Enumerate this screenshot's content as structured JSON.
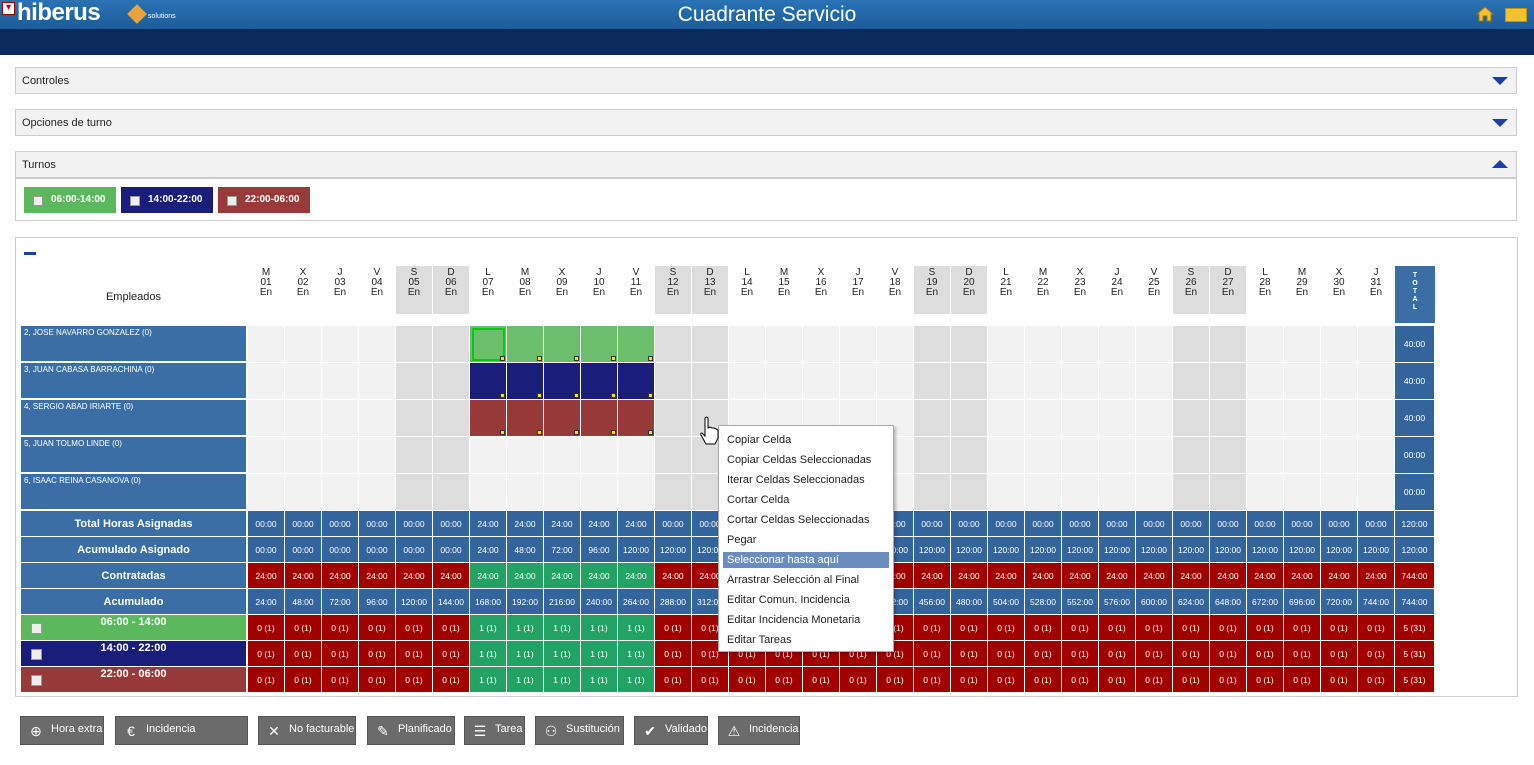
{
  "header": {
    "brand": "hiberus",
    "brand_sub": "solutions",
    "title": "Cuadrante Servicio",
    "close_icon": "close-icon",
    "home_icon": "home-icon",
    "mail_icon": "mail-icon"
  },
  "panels": [
    {
      "label": "Controles",
      "state": "collapsed"
    },
    {
      "label": "Opciones de turno",
      "state": "collapsed"
    },
    {
      "label": "Turnos",
      "state": "expanded"
    }
  ],
  "turnos": [
    {
      "label": "06:00-14:00",
      "color": "#5cb85c"
    },
    {
      "label": "14:00-22:00",
      "color": "#1b1d7a"
    },
    {
      "label": "22:00-06:00",
      "color": "#983a3a"
    }
  ],
  "grid": {
    "employees_label": "Empleados",
    "total_label": "TOTAL",
    "days": [
      [
        "M",
        "01",
        "En"
      ],
      [
        "X",
        "02",
        "En"
      ],
      [
        "J",
        "03",
        "En"
      ],
      [
        "V",
        "04",
        "En"
      ],
      [
        "S",
        "05",
        "En"
      ],
      [
        "D",
        "06",
        "En"
      ],
      [
        "L",
        "07",
        "En"
      ],
      [
        "M",
        "08",
        "En"
      ],
      [
        "X",
        "09",
        "En"
      ],
      [
        "J",
        "10",
        "En"
      ],
      [
        "V",
        "11",
        "En"
      ],
      [
        "S",
        "12",
        "En"
      ],
      [
        "D",
        "13",
        "En"
      ],
      [
        "L",
        "14",
        "En"
      ],
      [
        "M",
        "15",
        "En"
      ],
      [
        "X",
        "16",
        "En"
      ],
      [
        "J",
        "17",
        "En"
      ],
      [
        "V",
        "18",
        "En"
      ],
      [
        "S",
        "19",
        "En"
      ],
      [
        "D",
        "20",
        "En"
      ],
      [
        "L",
        "21",
        "En"
      ],
      [
        "M",
        "22",
        "En"
      ],
      [
        "X",
        "23",
        "En"
      ],
      [
        "J",
        "24",
        "En"
      ],
      [
        "V",
        "25",
        "En"
      ],
      [
        "S",
        "26",
        "En"
      ],
      [
        "D",
        "27",
        "En"
      ],
      [
        "L",
        "28",
        "En"
      ],
      [
        "M",
        "29",
        "En"
      ],
      [
        "X",
        "30",
        "En"
      ],
      [
        "J",
        "31",
        "En"
      ]
    ],
    "employees": [
      {
        "name": "2, JOSE NAVARRO GONZALEZ (0)",
        "total": "40:00",
        "shift": 1
      },
      {
        "name": "3, JUAN CABASA BARRACHINA (0)",
        "total": "40:00",
        "shift": 2
      },
      {
        "name": "4, SERGIO ABAD IRIARTE (0)",
        "total": "40:00",
        "shift": 3
      },
      {
        "name": "5, JUAN TOLMO LINDE (0)",
        "total": "00:00",
        "shift": 0
      },
      {
        "name": "6, ISAAC REINA CASANOVA (0)",
        "total": "00:00",
        "shift": 0
      }
    ],
    "summary": [
      {
        "label": "Total Horas Asignadas",
        "values": [
          "00:00",
          "00:00",
          "00:00",
          "00:00",
          "00:00",
          "00:00",
          "24:00",
          "24:00",
          "24:00",
          "24:00",
          "24:00",
          "00:00",
          "00:00",
          "00:00",
          "00:00",
          "00:00",
          "00:00",
          "00:00",
          "00:00",
          "00:00",
          "00:00",
          "00:00",
          "00:00",
          "00:00",
          "00:00",
          "00:00",
          "00:00",
          "00:00",
          "00:00",
          "00:00",
          "00:00"
        ],
        "total": "120:00"
      },
      {
        "label": "Acumulado Asignado",
        "values": [
          "00:00",
          "00:00",
          "00:00",
          "00:00",
          "00:00",
          "00:00",
          "24:00",
          "48:00",
          "72:00",
          "96:00",
          "120:00",
          "120:00",
          "120:00",
          "120:00",
          "120:00",
          "120:00",
          "120:00",
          "120:00",
          "120:00",
          "120:00",
          "120:00",
          "120:00",
          "120:00",
          "120:00",
          "120:00",
          "120:00",
          "120:00",
          "120:00",
          "120:00",
          "120:00",
          "120:00"
        ],
        "total": "120:00"
      },
      {
        "label": "Contratadas",
        "values": [
          "24:00",
          "24:00",
          "24:00",
          "24:00",
          "24:00",
          "24:00",
          "24:00",
          "24:00",
          "24:00",
          "24:00",
          "24:00",
          "24:00",
          "24:00",
          "24:00",
          "24:00",
          "24:00",
          "24:00",
          "24:00",
          "24:00",
          "24:00",
          "24:00",
          "24:00",
          "24:00",
          "24:00",
          "24:00",
          "24:00",
          "24:00",
          "24:00",
          "24:00",
          "24:00",
          "24:00"
        ],
        "total": "744:00"
      },
      {
        "label": "Acumulado",
        "values": [
          "24:00",
          "48:00",
          "72:00",
          "96:00",
          "120:00",
          "144:00",
          "168:00",
          "192:00",
          "216:00",
          "240:00",
          "264:00",
          "288:00",
          "312:00",
          "336:00",
          "360:00",
          "384:00",
          "408:00",
          "432:00",
          "456:00",
          "480:00",
          "504:00",
          "528:00",
          "552:00",
          "576:00",
          "600:00",
          "624:00",
          "648:00",
          "672:00",
          "696:00",
          "720:00",
          "744:00"
        ],
        "total": "744:00"
      }
    ],
    "shift_rows": [
      {
        "label": "06:00 - 14:00",
        "color": "#5cb85c",
        "total": "5 (31)"
      },
      {
        "label": "14:00 - 22:00",
        "color": "#1b1d7a",
        "total": "5 (31)"
      },
      {
        "label": "22:00 - 06:00",
        "color": "#983a3a",
        "total": "5 (31)"
      }
    ],
    "shift_cell_zero": "0 (1)",
    "shift_cell_one": "1 (1)"
  },
  "context_menu": [
    "Copiar Celda",
    "Copiar Celdas Seleccionadas",
    "Iterar Celdas Seleccionadas",
    "Cortar Celda",
    "Cortar Celdas Seleccionadas",
    "Pegar",
    "Seleccionar hasta aquí",
    "Arrastrar Selección al Final",
    "Editar Comun. Incidencia",
    "Editar Incidencia Monetaria",
    "Editar Tareas"
  ],
  "context_menu_selected": 6,
  "buttons": [
    {
      "label": "Hora extra",
      "icon": "plus-circle-icon"
    },
    {
      "label": "Incidencia Monetaria",
      "icon": "euro-icon"
    },
    {
      "label": "No facturable",
      "icon": "no-invoice-icon"
    },
    {
      "label": "Planificado",
      "icon": "edit-doc-icon"
    },
    {
      "label": "Tarea",
      "icon": "task-icon"
    },
    {
      "label": "Sustitución",
      "icon": "users-icon"
    },
    {
      "label": "Validado",
      "icon": "check-icon"
    },
    {
      "label": "Incidencia",
      "icon": "warning-icon"
    }
  ]
}
